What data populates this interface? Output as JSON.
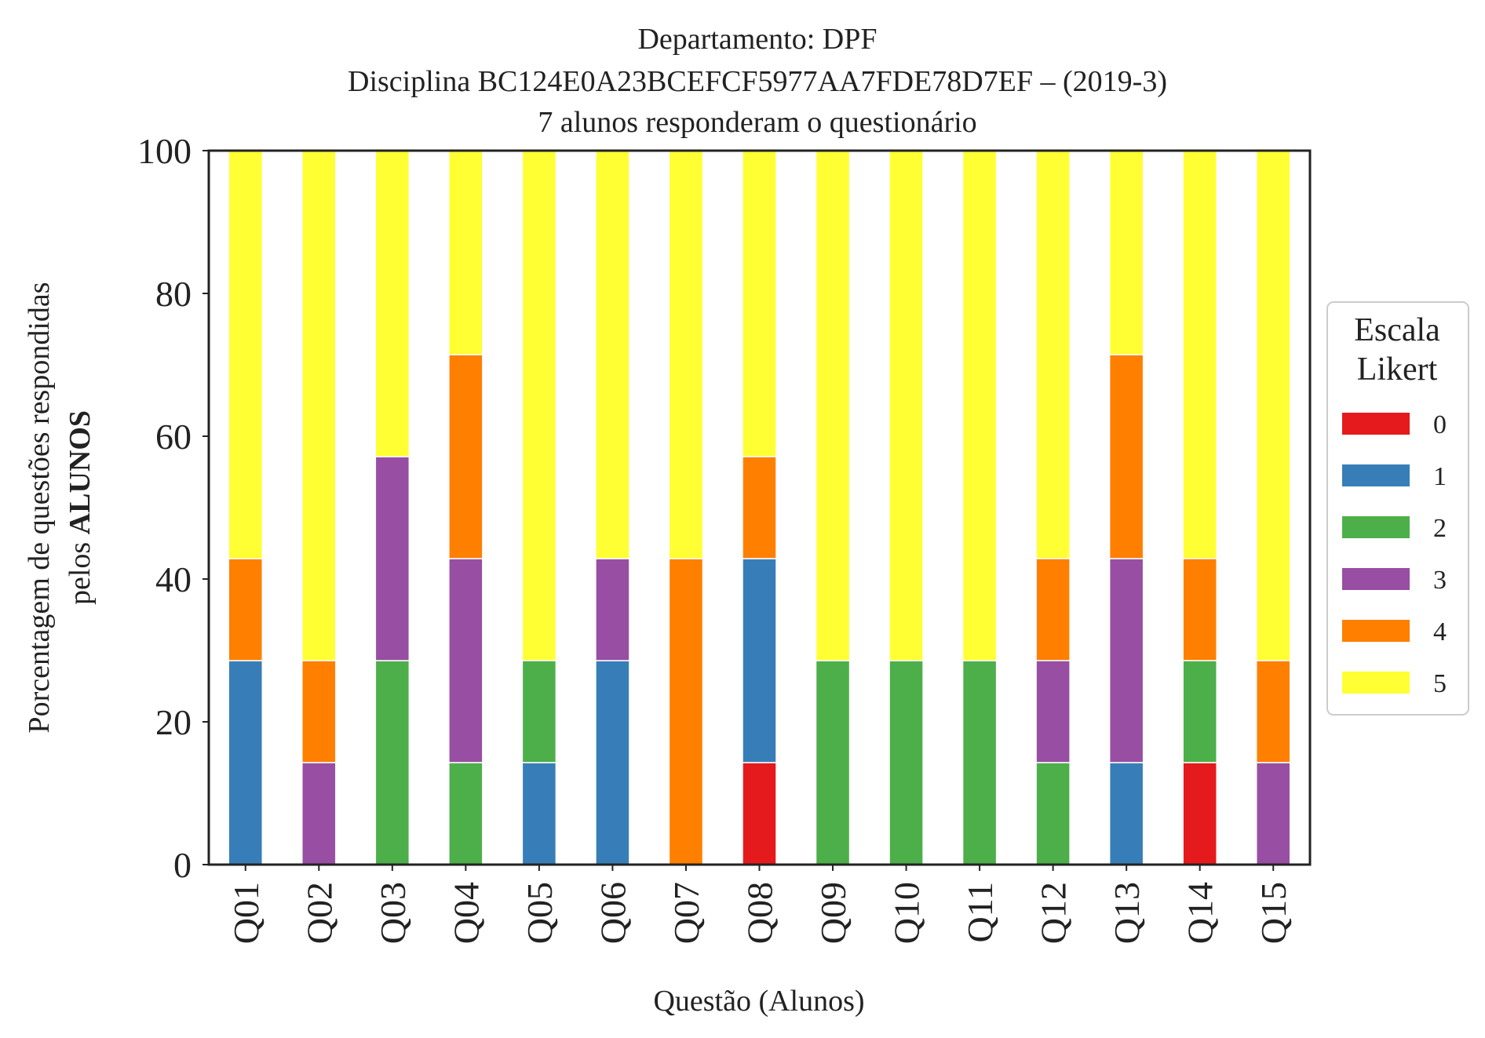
{
  "chart_data": {
    "type": "bar",
    "stacked": true,
    "title_lines": [
      "Departamento: DPF",
      "Disciplina BC124E0A23BCEFCF5977AA7FDE78D7EF – (2019-3)",
      "7 alunos responderam o questionário"
    ],
    "xlabel": "Questão (Alunos)",
    "ylabel_line1": "Porcentagem de questões respondidas",
    "ylabel_line2_prefix": "pelos ",
    "ylabel_line2_bold": "ALUNOS",
    "ylim": [
      0,
      100
    ],
    "yticks": [
      "0",
      "20",
      "40",
      "60",
      "80",
      "100"
    ],
    "grid": false,
    "legend_title": [
      "Escala",
      "Likert"
    ],
    "legend_position": "right",
    "categories": [
      "Q01",
      "Q02",
      "Q03",
      "Q04",
      "Q05",
      "Q06",
      "Q07",
      "Q08",
      "Q09",
      "Q10",
      "Q11",
      "Q12",
      "Q13",
      "Q14",
      "Q15"
    ],
    "series": [
      {
        "name": "0",
        "color": "#e41a1c",
        "values": [
          0,
          0,
          0,
          0,
          0,
          0,
          0,
          14.29,
          0,
          0,
          0,
          0,
          0,
          14.29,
          0
        ]
      },
      {
        "name": "1",
        "color": "#377eb8",
        "values": [
          28.57,
          0,
          0,
          0,
          14.29,
          28.57,
          0,
          28.57,
          0,
          0,
          0,
          0,
          14.29,
          0,
          0
        ]
      },
      {
        "name": "2",
        "color": "#4daf4a",
        "values": [
          0,
          0,
          28.57,
          14.29,
          14.29,
          0,
          0,
          0,
          28.57,
          28.57,
          28.57,
          14.29,
          0,
          14.29,
          0
        ]
      },
      {
        "name": "3",
        "color": "#984ea3",
        "values": [
          0,
          14.29,
          28.57,
          28.57,
          0,
          14.29,
          0,
          0,
          0,
          0,
          0,
          14.29,
          28.57,
          0,
          14.29
        ]
      },
      {
        "name": "4",
        "color": "#ff7f00",
        "values": [
          14.29,
          14.29,
          0,
          28.57,
          0,
          0,
          42.86,
          14.29,
          0,
          0,
          0,
          14.29,
          28.57,
          14.29,
          14.29
        ]
      },
      {
        "name": "5",
        "color": "#ffff33",
        "values": [
          57.14,
          71.43,
          42.86,
          28.57,
          71.43,
          57.14,
          57.14,
          42.86,
          71.43,
          71.43,
          71.43,
          57.14,
          28.57,
          57.14,
          71.43
        ]
      }
    ]
  }
}
